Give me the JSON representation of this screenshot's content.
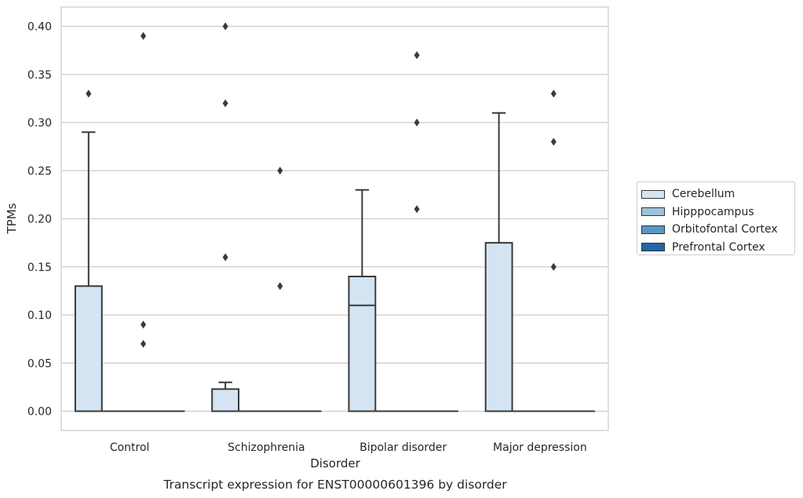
{
  "chart_data": {
    "type": "box",
    "title": "Transcript expression for ENST00000601396 by disorder",
    "xlabel": "Disorder",
    "ylabel": "TPMs",
    "ylim": [
      -0.02,
      0.42
    ],
    "yticks": [
      "0.00",
      "0.05",
      "0.10",
      "0.15",
      "0.20",
      "0.25",
      "0.30",
      "0.35",
      "0.40"
    ],
    "grid": true,
    "legend_position": "right",
    "categories": [
      "Control",
      "Schizophrenia",
      "Bipolar disorder",
      "Major depression"
    ],
    "series": [
      {
        "name": "Cerebellum",
        "color": "#d4e4f2",
        "boxes": [
          {
            "q1": 0.0,
            "median": 0.0,
            "q3": 0.13,
            "whisker_low": 0.0,
            "whisker_high": 0.29,
            "outliers": [
              0.33
            ]
          },
          {
            "q1": 0.0,
            "median": 0.0,
            "q3": 0.023,
            "whisker_low": 0.0,
            "whisker_high": 0.03,
            "outliers": [
              0.16,
              0.32,
              0.4
            ]
          },
          {
            "q1": 0.0,
            "median": 0.11,
            "q3": 0.14,
            "whisker_low": 0.0,
            "whisker_high": 0.23,
            "outliers": []
          },
          {
            "q1": 0.0,
            "median": 0.0,
            "q3": 0.175,
            "whisker_low": 0.0,
            "whisker_high": 0.31,
            "outliers": []
          }
        ]
      },
      {
        "name": "Hipppocampus",
        "color": "#9dc3dc",
        "boxes": [
          {
            "q1": 0.0,
            "median": 0.0,
            "q3": 0.0,
            "whisker_low": 0.0,
            "whisker_high": 0.0,
            "outliers": []
          },
          {
            "q1": 0.0,
            "median": 0.0,
            "q3": 0.0,
            "whisker_low": 0.0,
            "whisker_high": 0.0,
            "outliers": []
          },
          {
            "q1": 0.0,
            "median": 0.0,
            "q3": 0.0,
            "whisker_low": 0.0,
            "whisker_high": 0.0,
            "outliers": []
          },
          {
            "q1": 0.0,
            "median": 0.0,
            "q3": 0.0,
            "whisker_low": 0.0,
            "whisker_high": 0.0,
            "outliers": []
          }
        ]
      },
      {
        "name": "Orbitofontal Cortex",
        "color": "#5a97c3",
        "boxes": [
          {
            "q1": 0.0,
            "median": 0.0,
            "q3": 0.0,
            "whisker_low": 0.0,
            "whisker_high": 0.0,
            "outliers": [
              0.07,
              0.09,
              0.39
            ]
          },
          {
            "q1": 0.0,
            "median": 0.0,
            "q3": 0.0,
            "whisker_low": 0.0,
            "whisker_high": 0.0,
            "outliers": [
              0.13,
              0.25
            ]
          },
          {
            "q1": 0.0,
            "median": 0.0,
            "q3": 0.0,
            "whisker_low": 0.0,
            "whisker_high": 0.0,
            "outliers": [
              0.21,
              0.3,
              0.37
            ]
          },
          {
            "q1": 0.0,
            "median": 0.0,
            "q3": 0.0,
            "whisker_low": 0.0,
            "whisker_high": 0.0,
            "outliers": [
              0.15,
              0.28,
              0.33
            ]
          }
        ]
      },
      {
        "name": "Prefrontal Cortex",
        "color": "#2166a7",
        "boxes": [
          {
            "q1": 0.0,
            "median": 0.0,
            "q3": 0.0,
            "whisker_low": 0.0,
            "whisker_high": 0.0,
            "outliers": []
          },
          {
            "q1": 0.0,
            "median": 0.0,
            "q3": 0.0,
            "whisker_low": 0.0,
            "whisker_high": 0.0,
            "outliers": []
          },
          {
            "q1": 0.0,
            "median": 0.0,
            "q3": 0.0,
            "whisker_low": 0.0,
            "whisker_high": 0.0,
            "outliers": []
          },
          {
            "q1": 0.0,
            "median": 0.0,
            "q3": 0.0,
            "whisker_low": 0.0,
            "whisker_high": 0.0,
            "outliers": []
          }
        ]
      }
    ]
  },
  "colors": {
    "grid": "#cccccc",
    "box_edge": "#3a3a3a",
    "outlier": "#3a3a3a"
  }
}
